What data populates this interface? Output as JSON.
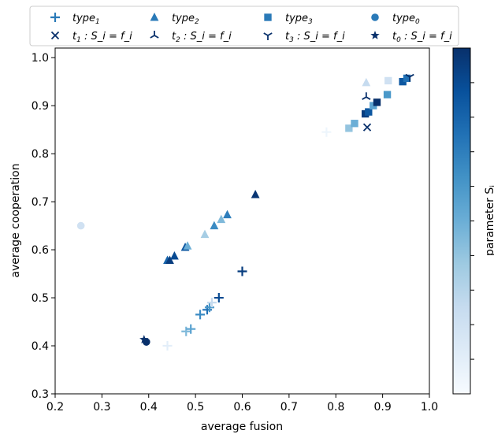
{
  "chart_data": {
    "type": "scatter",
    "xlabel": "average fusion",
    "ylabel": "average cooperation",
    "xlim": [
      0.2,
      1.0
    ],
    "ylim": [
      0.3,
      1.02
    ],
    "xticks": [
      "0.2",
      "0.3",
      "0.4",
      "0.5",
      "0.6",
      "0.7",
      "0.8",
      "0.9",
      "1.0"
    ],
    "yticks": [
      "0.3",
      "0.4",
      "0.5",
      "0.6",
      "0.7",
      "0.8",
      "0.9",
      "1.0"
    ],
    "colorbar": {
      "label": "parameter S",
      "label_sub": "i",
      "range": [
        0,
        1
      ]
    },
    "legend_placement": "top",
    "legend": [
      {
        "name": "type",
        "sub": "1",
        "rest": "",
        "marker": "plus"
      },
      {
        "name": "type",
        "sub": "2",
        "rest": "",
        "marker": "triangle"
      },
      {
        "name": "type",
        "sub": "3",
        "rest": "",
        "marker": "square"
      },
      {
        "name": "type",
        "sub": "0",
        "rest": "",
        "marker": "circle"
      },
      {
        "name": "t",
        "sub": "1",
        "rest": " : S_i = f_i",
        "marker": "x"
      },
      {
        "name": "t",
        "sub": "2",
        "rest": " : S_i = f_i",
        "marker": "tri_down"
      },
      {
        "name": "t",
        "sub": "3",
        "rest": " : S_i = f_i",
        "marker": "tri_up"
      },
      {
        "name": "t",
        "sub": "0",
        "rest": " : S_i = f_i",
        "marker": "star"
      }
    ],
    "series": [
      {
        "marker": "plus",
        "points": [
          [
            0.44,
            0.4,
            0.1
          ],
          [
            0.48,
            0.43,
            0.45
          ],
          [
            0.49,
            0.435,
            0.55
          ],
          [
            0.51,
            0.465,
            0.65
          ],
          [
            0.525,
            0.475,
            0.75
          ],
          [
            0.53,
            0.48,
            0.6
          ],
          [
            0.535,
            0.49,
            0.25
          ],
          [
            0.55,
            0.5,
            0.9
          ],
          [
            0.6,
            0.555,
            0.95
          ],
          [
            0.78,
            0.845,
            0.05
          ]
        ]
      },
      {
        "marker": "triangle",
        "points": [
          [
            0.44,
            0.578,
            0.8
          ],
          [
            0.445,
            0.578,
            0.95
          ],
          [
            0.455,
            0.587,
            0.9
          ],
          [
            0.478,
            0.605,
            0.85
          ],
          [
            0.483,
            0.608,
            0.5
          ],
          [
            0.52,
            0.632,
            0.35
          ],
          [
            0.54,
            0.65,
            0.65
          ],
          [
            0.555,
            0.663,
            0.45
          ],
          [
            0.568,
            0.673,
            0.7
          ],
          [
            0.628,
            0.715,
            0.98
          ],
          [
            0.865,
            0.948,
            0.25
          ]
        ]
      },
      {
        "marker": "square",
        "points": [
          [
            0.828,
            0.853,
            0.4
          ],
          [
            0.84,
            0.863,
            0.5
          ],
          [
            0.863,
            0.883,
            0.95
          ],
          [
            0.87,
            0.887,
            0.85
          ],
          [
            0.88,
            0.9,
            0.55
          ],
          [
            0.888,
            0.907,
            1.0
          ],
          [
            0.91,
            0.923,
            0.6
          ],
          [
            0.912,
            0.952,
            0.2
          ],
          [
            0.943,
            0.95,
            0.85
          ],
          [
            0.952,
            0.957,
            0.75
          ]
        ]
      },
      {
        "marker": "circle",
        "points": [
          [
            0.255,
            0.65,
            0.2
          ],
          [
            0.395,
            0.408,
            1.0
          ]
        ]
      },
      {
        "marker": "x",
        "points": [
          [
            0.867,
            0.855,
            1.0
          ]
        ]
      },
      {
        "marker": "tri_down",
        "points": [
          [
            0.865,
            0.918,
            1.0
          ]
        ]
      },
      {
        "marker": "tri_up",
        "points": [
          [
            0.958,
            0.96,
            1.0
          ]
        ]
      },
      {
        "marker": "star",
        "points": [
          [
            0.39,
            0.413,
            1.0
          ]
        ]
      }
    ]
  }
}
